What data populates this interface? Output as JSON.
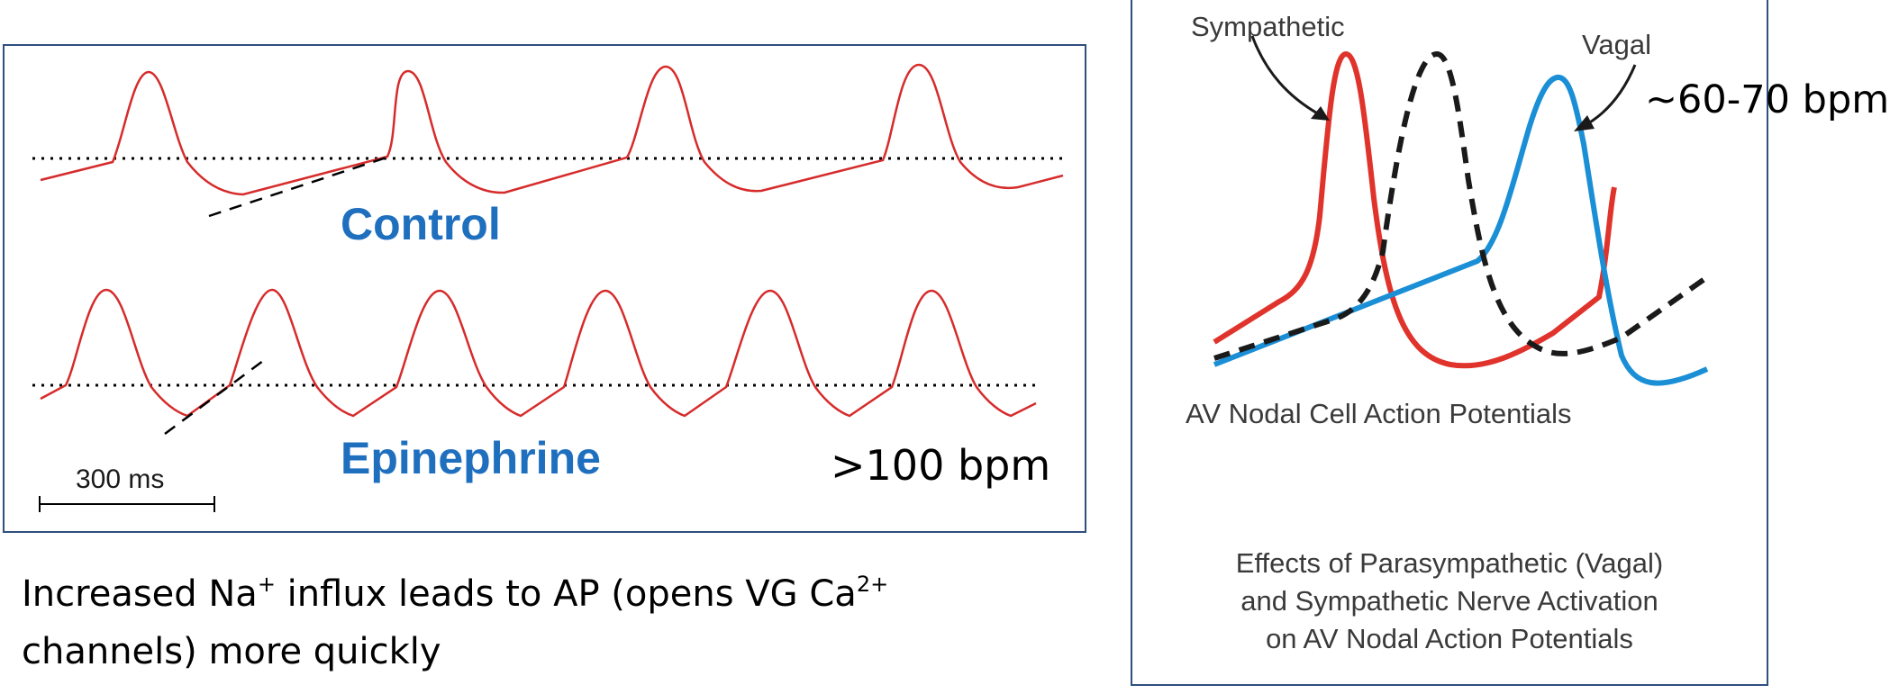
{
  "left_panel": {
    "control_label": "Control",
    "epinephrine_label": "Epinephrine",
    "scale_bar_label": "300 ms",
    "rate_label": ">100 bpm"
  },
  "caption": {
    "part1": "Increased Na",
    "sup1": "+",
    "part2": " influx leads to AP (opens VG Ca",
    "sup2": "2+",
    "part3": "channels) more quickly"
  },
  "right_panel": {
    "sympathetic_label": "Sympathetic",
    "vagal_label": "Vagal",
    "rate_label": "~60-70 bpm",
    "subtitle": "AV Nodal Cell Action Potentials",
    "caption_line1": "Effects of Parasympathetic (Vagal)",
    "caption_line2": "and Sympathetic Nerve Activation",
    "caption_line3": "on AV Nodal Action Potentials"
  },
  "colors": {
    "trace_red": "#d62b2b",
    "trace_blue": "#1a8fd6",
    "label_blue": "#1f6fbf",
    "frame": "#2f4f7f"
  }
}
